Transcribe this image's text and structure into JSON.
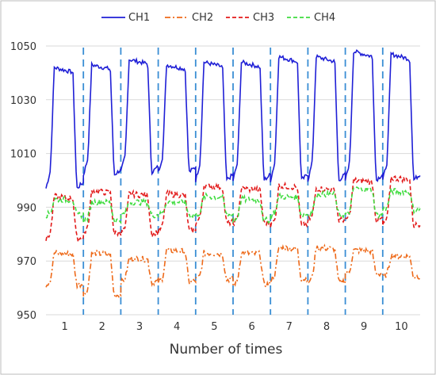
{
  "chart_data": {
    "type": "line",
    "title": "",
    "xlabel": "Number of times",
    "ylabel": "",
    "ylim": [
      950,
      1050
    ],
    "y_ticks": [
      "950",
      "970",
      "990",
      "1010",
      "1030",
      "1050"
    ],
    "x_ticks": [
      "1",
      "2",
      "3",
      "4",
      "5",
      "6",
      "7",
      "8",
      "9",
      "10"
    ],
    "grid": "horizontal",
    "legend_position": "top",
    "divider_style": "dashed vertical lines between cycles",
    "cycles": 10,
    "series": [
      {
        "name": "CH1",
        "color": "#1f1fd6",
        "style": "solid",
        "low": [
          997,
          1002,
          1003,
          1003,
          1000,
          1000,
          1000,
          1000,
          1000,
          1000
        ],
        "high": [
          1042,
          1043,
          1045,
          1043,
          1044,
          1044,
          1046,
          1046,
          1048,
          1047
        ]
      },
      {
        "name": "CH2",
        "color": "#ee6a1a",
        "style": "dash-dot",
        "low": [
          961,
          957,
          962,
          962,
          963,
          961,
          963,
          962,
          965,
          964
        ],
        "high": [
          973,
          973,
          971,
          974,
          973,
          973,
          975,
          975,
          974,
          972
        ]
      },
      {
        "name": "CH3",
        "color": "#e21a1a",
        "style": "dashed",
        "low": [
          978,
          980,
          980,
          981,
          984,
          984,
          983,
          985,
          985,
          983
        ],
        "high": [
          994,
          996,
          995,
          995,
          998,
          997,
          998,
          997,
          1000,
          1001
        ]
      },
      {
        "name": "CH4",
        "color": "#3fdc3f",
        "style": "dashed",
        "low": [
          987,
          985,
          987,
          987,
          987,
          985,
          987,
          987,
          987,
          989
        ],
        "high": [
          993,
          992,
          992,
          992,
          994,
          993,
          994,
          995,
          997,
          996
        ]
      }
    ]
  }
}
